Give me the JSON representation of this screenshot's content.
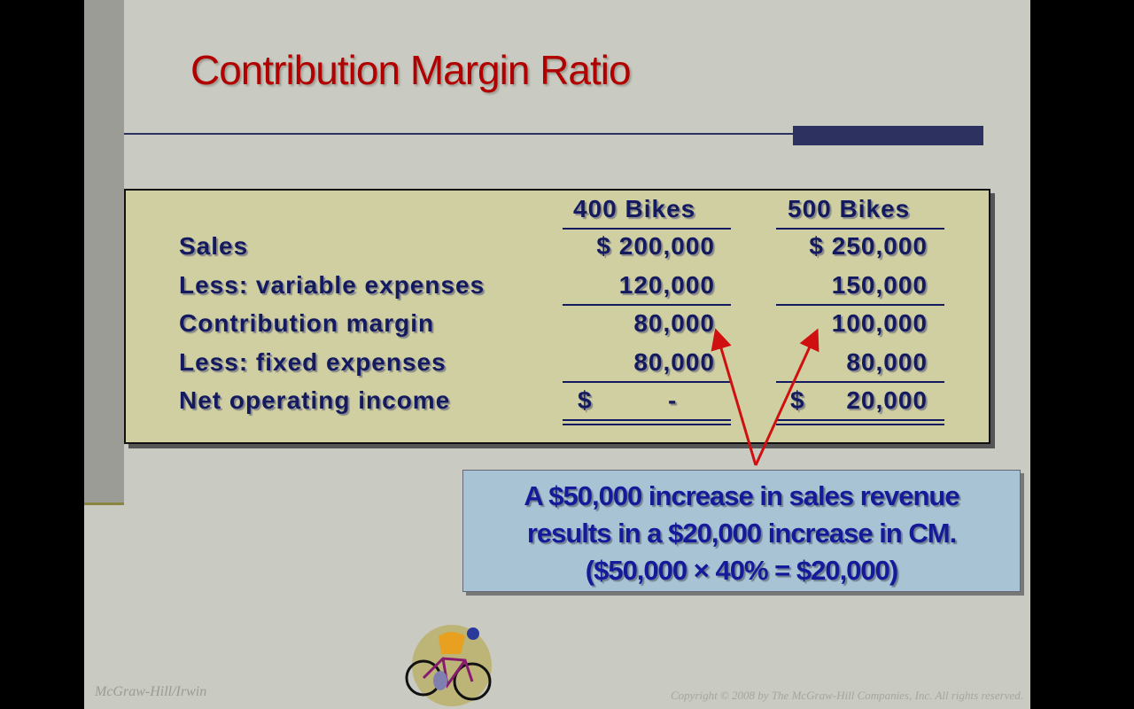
{
  "slide": {
    "title": "Contribution Margin Ratio",
    "table": {
      "columns": [
        "400 Bikes",
        "500 Bikes"
      ],
      "rows": [
        {
          "label": "Sales",
          "v1": "$ 200,000",
          "v2": "$ 250,000"
        },
        {
          "label": "Less: variable expenses",
          "v1": "120,000",
          "v2": "150,000"
        },
        {
          "label": "Contribution margin",
          "v1": "80,000",
          "v2": "100,000"
        },
        {
          "label": "Less: fixed expenses",
          "v1": "80,000",
          "v2": "80,000"
        },
        {
          "label": "Net operating income",
          "v1_symbol": "$",
          "v1": "-",
          "v2_symbol": "$",
          "v2": "20,000"
        }
      ]
    },
    "callout": {
      "lines": [
        "A $50,000 increase in sales revenue",
        "results in a $20,000 increase in CM.",
        "($50,000 × 40% = $20,000)"
      ]
    },
    "footer_left": "McGraw-Hill/Irwin",
    "footer_right": "Copyright © 2008 by The McGraw-Hill Companies, Inc. All rights reserved.",
    "colors": {
      "title": "#b00000",
      "text": "#141a60",
      "accent": "#2c3160",
      "arrow": "#d01010"
    }
  }
}
